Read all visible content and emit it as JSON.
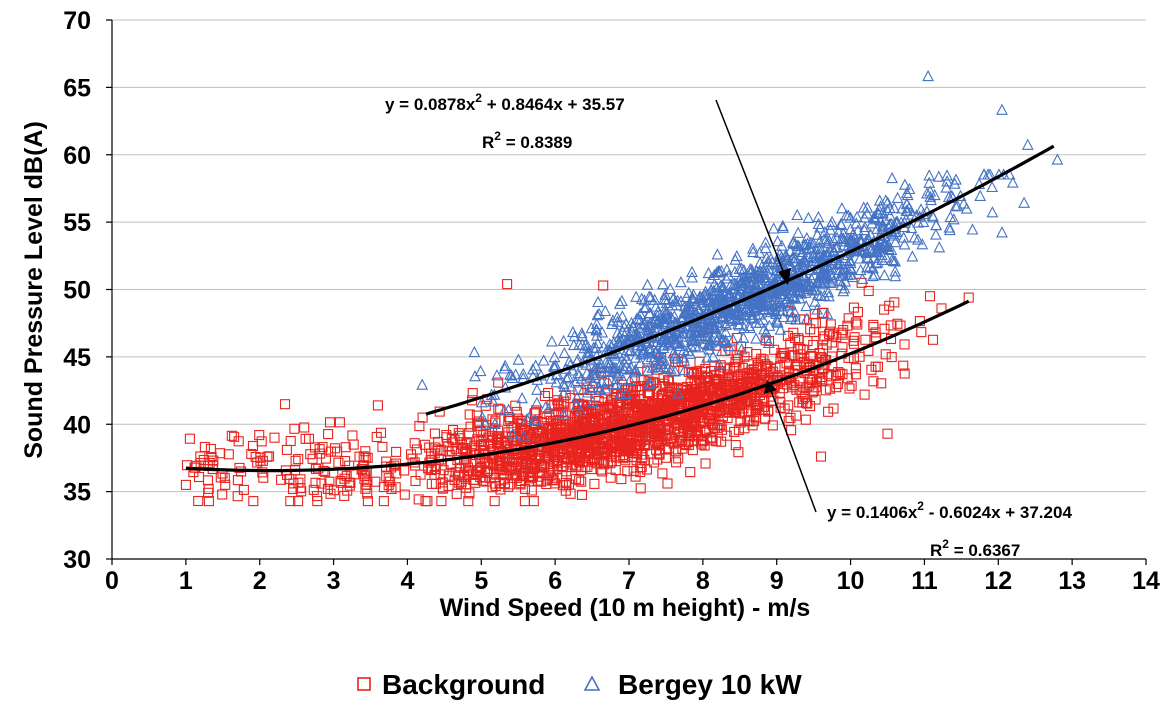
{
  "chart_data": {
    "type": "scatter",
    "xlabel": "Wind Speed (10 m height) - m/s",
    "ylabel": "Sound Pressure Level dB(A)",
    "xlim": [
      0,
      14
    ],
    "ylim": [
      30,
      70
    ],
    "x_ticks": [
      "0",
      "1",
      "2",
      "3",
      "4",
      "5",
      "6",
      "7",
      "8",
      "9",
      "10",
      "11",
      "12",
      "13",
      "14"
    ],
    "y_ticks": [
      "30",
      "35",
      "40",
      "45",
      "50",
      "55",
      "60",
      "65",
      "70"
    ],
    "grid": "horizontal",
    "legend_position": "bottom",
    "series": [
      {
        "name": "Background",
        "marker": "square-open",
        "color": "#e8241f",
        "x_range": [
          1.0,
          11.6
        ],
        "point_count": 2000,
        "outliers": [
          [
            5.35,
            50.4
          ],
          [
            6.65,
            50.3
          ],
          [
            1.0,
            35.5
          ],
          [
            2.2,
            39.0
          ],
          [
            3.6,
            41.4
          ],
          [
            10.5,
            39.3
          ],
          [
            11.6,
            49.4
          ],
          [
            9.6,
            37.6
          ]
        ],
        "trendline": {
          "type": "poly2",
          "a": 0.1406,
          "b": -0.6024,
          "c": 37.204,
          "x_range": [
            1.0,
            11.6
          ],
          "color": "#000000"
        },
        "equation": "y = 0.1406x2 - 0.6024x + 37.204",
        "r2": "R2 = 0.6367"
      },
      {
        "name": "Bergey 10 kW",
        "marker": "triangle-open",
        "color": "#4472c4",
        "x_range": [
          4.2,
          12.8
        ],
        "point_count": 1300,
        "outliers": [
          [
            11.05,
            65.8
          ],
          [
            12.05,
            63.3
          ],
          [
            12.4,
            60.7
          ],
          [
            12.8,
            59.6
          ],
          [
            12.35,
            56.4
          ],
          [
            12.05,
            54.2
          ],
          [
            4.2,
            42.9
          ]
        ],
        "trendline": {
          "type": "poly2",
          "a": 0.0878,
          "b": 0.8464,
          "c": 35.57,
          "x_range": [
            4.25,
            12.75
          ],
          "color": "#000000"
        },
        "equation": "y = 0.0878x2 + 0.8464x + 35.57",
        "r2": "R2 = 0.8389"
      }
    ],
    "annotations": [
      {
        "text": "y = 0.0878x2 + 0.8464x + 35.57",
        "series": "Bergey 10 kW"
      },
      {
        "text": "R2 = 0.8389",
        "series": "Bergey 10 kW"
      },
      {
        "text": "y = 0.1406x2 - 0.6024x + 37.204",
        "series": "Background"
      },
      {
        "text": "R2 = 0.6367",
        "series": "Background"
      }
    ]
  },
  "legend": {
    "items": [
      {
        "label": "Background",
        "marker": "square-open",
        "color": "#e8241f"
      },
      {
        "label": "Bergey 10 kW",
        "marker": "triangle-open",
        "color": "#4472c4"
      }
    ]
  },
  "labels": {
    "eq_bergey_main": "y = 0.0878x",
    "eq_bergey_sup": "2",
    "eq_bergey_rest": " + 0.8464x + 35.57",
    "r2_bergey_main": "R",
    "r2_bergey_sup": "2",
    "r2_bergey_rest": " = 0.8389",
    "eq_bg_main": "y = 0.1406x",
    "eq_bg_sup": "2",
    "eq_bg_rest": " - 0.6024x + 37.204",
    "r2_bg_main": "R",
    "r2_bg_sup": "2",
    "r2_bg_rest": " = 0.6367"
  }
}
